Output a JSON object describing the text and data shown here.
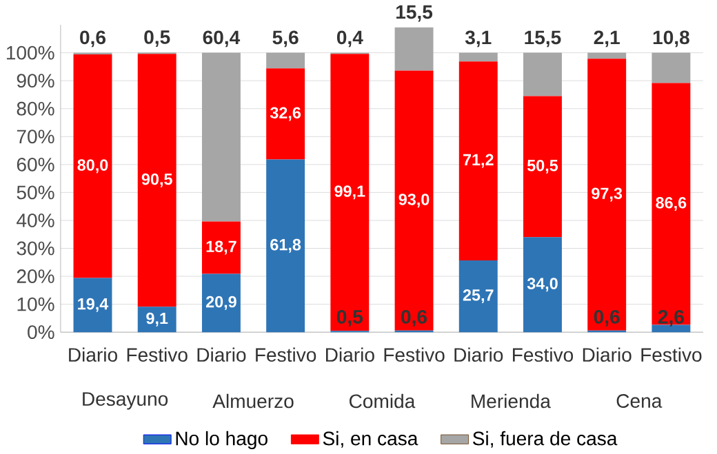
{
  "chart_data": {
    "type": "bar",
    "stacked": true,
    "categories": [
      "Diario",
      "Festivo",
      "Diario",
      "Festivo",
      "Diario",
      "Festivo",
      "Diario",
      "Festivo",
      "Diario",
      "Festivo"
    ],
    "annotations": [
      "Desayuno",
      "Almuerzo",
      "Comida",
      "Merienda",
      "Cena"
    ],
    "series": [
      {
        "name": "No lo hago",
        "color": "#2e75b6",
        "values": [
          19.4,
          9.1,
          20.9,
          61.8,
          0.5,
          0.6,
          25.7,
          34.0,
          0.6,
          2.6
        ],
        "value_labels": [
          "19,4",
          "9,1",
          "20,9",
          "61,8",
          "0,5",
          "0,6",
          "25,7",
          "34,0",
          "0,6",
          "2,6"
        ]
      },
      {
        "name": "Si, en casa",
        "color": "#ff0000",
        "values": [
          80.0,
          90.5,
          18.7,
          32.6,
          99.1,
          93.0,
          71.2,
          50.5,
          97.3,
          86.6
        ],
        "value_labels": [
          "80,0",
          "90,5",
          "18,7",
          "32,6",
          "99,1",
          "93,0",
          "71,2",
          "50,5",
          "97,3",
          "86,6"
        ]
      },
      {
        "name": "Si, fuera de casa",
        "color": "#a6a6a6",
        "values": [
          0.6,
          0.5,
          60.4,
          5.6,
          0.4,
          15.5,
          3.1,
          15.5,
          2.1,
          10.8
        ],
        "value_labels": [
          "0,6",
          "0,5",
          "60,4",
          "5,6",
          "0,4",
          "15,5",
          "3,1",
          "15,5",
          "2,1",
          "10,8"
        ]
      }
    ],
    "ylim": [
      0,
      110
    ],
    "yticks": [
      {
        "value": 0,
        "label": "0%"
      },
      {
        "value": 10,
        "label": "10%"
      },
      {
        "value": 20,
        "label": "20%"
      },
      {
        "value": 30,
        "label": "30%"
      },
      {
        "value": 40,
        "label": "40%"
      },
      {
        "value": 50,
        "label": "50%"
      },
      {
        "value": 60,
        "label": "60%"
      },
      {
        "value": 70,
        "label": "70%"
      },
      {
        "value": 80,
        "label": "80%"
      },
      {
        "value": 90,
        "label": "90%"
      },
      {
        "value": 100,
        "label": "100%"
      }
    ],
    "grid": "y",
    "legend": "bottom"
  }
}
